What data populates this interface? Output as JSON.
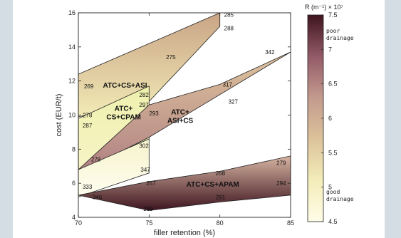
{
  "chart_data": {
    "type": "area",
    "xlabel": "filler retention (%)",
    "ylabel": "cost (EUR/t)",
    "xlim": [
      70,
      85
    ],
    "ylim": [
      4,
      16
    ],
    "xticks": [
      "70",
      "75",
      "80",
      "85"
    ],
    "yticks": [
      "4",
      "6",
      "8",
      "10",
      "12",
      "14",
      "16"
    ],
    "colorbar": {
      "title": "R (m⁻¹) × 10⁷",
      "range": [
        4.5,
        7.5
      ],
      "ticks": [
        "7.5",
        "7",
        "6.5",
        "6",
        "5.5",
        "5",
        "4.5"
      ],
      "top_label_1": "poor",
      "top_label_2": "drainage",
      "bottom_label_1": "good",
      "bottom_label_2": "drainage",
      "colors": [
        "#fffde8",
        "#f3ecb9",
        "#dcc39a",
        "#c39a8e",
        "#935a67",
        "#3e1520"
      ]
    },
    "regions": [
      {
        "name": "ATC+CS+ASI",
        "label_at": [
          73.3,
          11.6
        ],
        "polygon": [
          [
            70,
            9.9
          ],
          [
            75,
            10.8
          ],
          [
            80,
            15.2
          ],
          [
            80,
            16.0
          ],
          [
            75,
            14.2
          ],
          [
            70,
            12.4
          ]
        ],
        "color_top": "#c9a486",
        "color_bottom": "#f2ebb6",
        "annotations": [
          {
            "text": "285",
            "x": 80.3,
            "y": 15.9
          },
          {
            "text": "288",
            "x": 80.3,
            "y": 15.1
          },
          {
            "text": "275",
            "x": 76.2,
            "y": 13.4
          },
          {
            "text": "269",
            "x": 70.4,
            "y": 11.7
          },
          {
            "text": "282",
            "x": 74.3,
            "y": 11.2
          }
        ]
      },
      {
        "name": "ATC+\nCS+CPAM",
        "label_at": [
          73.2,
          10.0
        ],
        "polygon": [
          [
            70,
            6.8
          ],
          [
            75,
            8.6
          ],
          [
            75,
            11.7
          ],
          [
            70,
            9.8
          ]
        ],
        "color_top": "#eef0ad",
        "color_bottom": "#f7f4c6",
        "annotations": [
          {
            "text": "297",
            "x": 74.3,
            "y": 10.6
          },
          {
            "text": "278",
            "x": 70.3,
            "y": 10.0
          },
          {
            "text": "287",
            "x": 70.3,
            "y": 9.4
          },
          {
            "text": "278",
            "x": 70.9,
            "y": 7.4
          }
        ]
      },
      {
        "name": "ATC+\nASI+CS",
        "label_at": [
          77.2,
          9.8
        ],
        "polygon": [
          [
            70,
            6.6
          ],
          [
            75,
            8.7
          ],
          [
            85,
            13.7
          ],
          [
            80,
            11.8
          ],
          [
            75,
            10.6
          ],
          [
            70,
            6.8
          ]
        ],
        "color_top": "#dfc49d",
        "color_bottom": "#b08083",
        "annotations": [
          {
            "text": "342",
            "x": 83.2,
            "y": 13.7
          },
          {
            "text": "317",
            "x": 80.2,
            "y": 11.8
          },
          {
            "text": "327",
            "x": 80.6,
            "y": 10.8
          },
          {
            "text": "293",
            "x": 75.0,
            "y": 10.1
          },
          {
            "text": "302",
            "x": 74.3,
            "y": 8.2
          }
        ]
      },
      {
        "name": "ATC+CS+CPAM (low)",
        "label_at": null,
        "polygon": [
          [
            70,
            5.2
          ],
          [
            75,
            6.6
          ],
          [
            75,
            8.6
          ],
          [
            70,
            6.8
          ]
        ],
        "color_top": "#f6f3cc",
        "color_bottom": "#fffef0",
        "annotations": [
          {
            "text": "347",
            "x": 74.4,
            "y": 6.8
          },
          {
            "text": "333",
            "x": 70.3,
            "y": 5.8
          }
        ]
      },
      {
        "name": "ATC+CS+APAM",
        "label_at": [
          79.5,
          5.8
        ],
        "polygon": [
          [
            70,
            5.3
          ],
          [
            75,
            6.1
          ],
          [
            80,
            6.7
          ],
          [
            85,
            7.6
          ],
          [
            85,
            5.3
          ],
          [
            80,
            4.9
          ],
          [
            75,
            4.4
          ]
        ],
        "color_top": "#d6b4a2",
        "color_bottom": "#3e1520",
        "annotations": [
          {
            "text": "279",
            "x": 84.0,
            "y": 7.2
          },
          {
            "text": "268",
            "x": 79.7,
            "y": 6.6
          },
          {
            "text": "294",
            "x": 84.0,
            "y": 6.0
          },
          {
            "text": "257",
            "x": 74.8,
            "y": 6.0
          },
          {
            "text": "291",
            "x": 79.7,
            "y": 5.2
          },
          {
            "text": "346",
            "x": 71.0,
            "y": 5.2
          },
          {
            "text": "289",
            "x": 74.6,
            "y": 4.5
          }
        ]
      }
    ]
  }
}
